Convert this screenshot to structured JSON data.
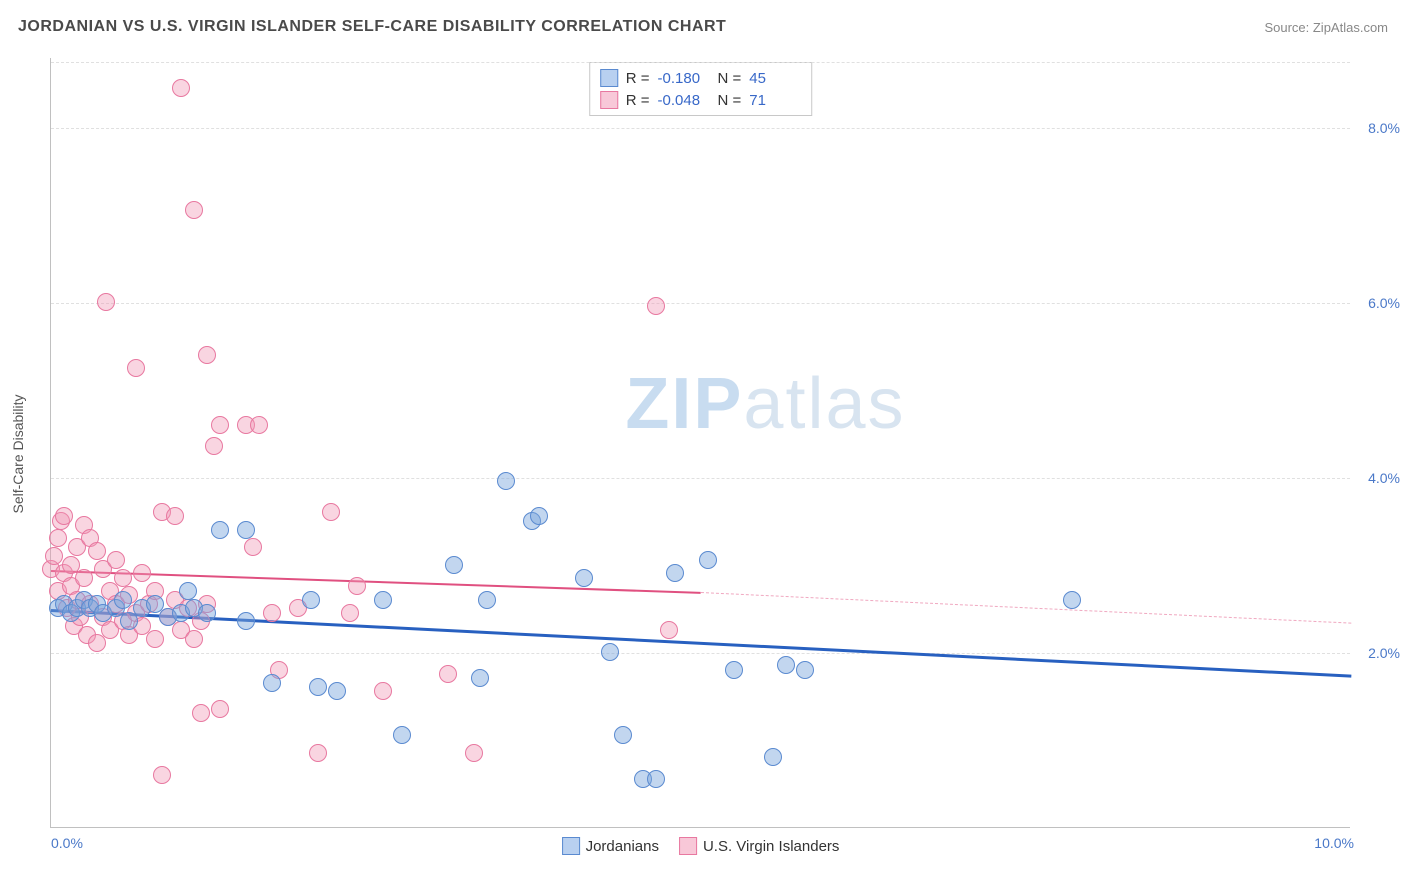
{
  "header": {
    "title": "JORDANIAN VS U.S. VIRGIN ISLANDER SELF-CARE DISABILITY CORRELATION CHART",
    "source": "Source: ZipAtlas.com"
  },
  "watermark": {
    "text1": "ZIP",
    "text2": "atlas"
  },
  "axes": {
    "y_label": "Self-Care Disability",
    "x_min": 0,
    "x_max": 10,
    "y_min": 0,
    "y_max": 8.8,
    "y_ticks": [
      2,
      4,
      6,
      8
    ],
    "y_tick_labels": [
      "2.0%",
      "4.0%",
      "6.0%",
      "8.0%"
    ],
    "x_tick_left": "0.0%",
    "x_tick_right": "10.0%",
    "tick_color": "#4a78c8",
    "grid_color": "#e0e0e0"
  },
  "stats_legend": {
    "rows": [
      {
        "swatch_fill": "#b8d0f0",
        "swatch_border": "#5a8ad0",
        "r_label": "R =",
        "r_val": "-0.180",
        "n_label": "N =",
        "n_val": "45"
      },
      {
        "swatch_fill": "#f8c8d8",
        "swatch_border": "#e878a0",
        "r_label": "R =",
        "r_val": "-0.048",
        "n_label": "N =",
        "n_val": "71"
      }
    ]
  },
  "bottom_legend": {
    "items": [
      {
        "swatch_fill": "#b8d0f0",
        "swatch_border": "#5a8ad0",
        "label": "Jordanians"
      },
      {
        "swatch_fill": "#f8c8d8",
        "swatch_border": "#e878a0",
        "label": "U.S. Virgin Islanders"
      }
    ]
  },
  "series": {
    "blue": {
      "fill": "rgba(120,165,220,0.45)",
      "stroke": "#5a8ad0",
      "radius": 9,
      "trend": {
        "x1": 0,
        "y1": 2.5,
        "x2": 10,
        "y2": 1.75,
        "color": "#2860c0",
        "width": 2.5,
        "dash_from_x": 10
      },
      "points": [
        [
          0.05,
          2.5
        ],
        [
          0.1,
          2.55
        ],
        [
          0.15,
          2.45
        ],
        [
          0.2,
          2.5
        ],
        [
          0.25,
          2.6
        ],
        [
          0.3,
          2.5
        ],
        [
          0.35,
          2.55
        ],
        [
          0.4,
          2.45
        ],
        [
          0.5,
          2.5
        ],
        [
          0.55,
          2.6
        ],
        [
          0.6,
          2.35
        ],
        [
          0.7,
          2.5
        ],
        [
          0.8,
          2.55
        ],
        [
          0.9,
          2.4
        ],
        [
          1.0,
          2.45
        ],
        [
          1.05,
          2.7
        ],
        [
          1.1,
          2.5
        ],
        [
          1.2,
          2.45
        ],
        [
          1.3,
          3.4
        ],
        [
          1.5,
          2.35
        ],
        [
          1.5,
          3.4
        ],
        [
          1.7,
          1.65
        ],
        [
          2.0,
          2.6
        ],
        [
          2.05,
          1.6
        ],
        [
          2.2,
          1.55
        ],
        [
          2.55,
          2.6
        ],
        [
          2.7,
          1.05
        ],
        [
          3.1,
          3.0
        ],
        [
          3.3,
          1.7
        ],
        [
          3.5,
          3.95
        ],
        [
          3.7,
          3.5
        ],
        [
          3.75,
          3.55
        ],
        [
          4.1,
          2.85
        ],
        [
          4.3,
          2.0
        ],
        [
          4.4,
          1.05
        ],
        [
          4.55,
          0.55
        ],
        [
          4.8,
          2.9
        ],
        [
          5.05,
          3.05
        ],
        [
          5.25,
          1.8
        ],
        [
          5.55,
          0.8
        ],
        [
          5.65,
          1.85
        ],
        [
          5.8,
          1.8
        ],
        [
          7.85,
          2.6
        ],
        [
          4.65,
          0.55
        ],
        [
          3.35,
          2.6
        ]
      ]
    },
    "pink": {
      "fill": "rgba(240,150,180,0.40)",
      "stroke": "#e878a0",
      "radius": 9,
      "trend": {
        "x1": 0,
        "y1": 2.95,
        "x2": 5,
        "y2": 2.7,
        "color": "#e05080",
        "width": 2,
        "dash_from_x": 5,
        "dash_color": "#f0a8c0",
        "x2_dash": 10,
        "y2_dash": 2.35
      },
      "points": [
        [
          0.0,
          2.95
        ],
        [
          0.02,
          3.1
        ],
        [
          0.05,
          3.3
        ],
        [
          0.05,
          2.7
        ],
        [
          0.08,
          3.5
        ],
        [
          0.1,
          3.55
        ],
        [
          0.1,
          2.9
        ],
        [
          0.12,
          2.5
        ],
        [
          0.15,
          3.0
        ],
        [
          0.15,
          2.75
        ],
        [
          0.18,
          2.3
        ],
        [
          0.2,
          3.2
        ],
        [
          0.2,
          2.6
        ],
        [
          0.22,
          2.4
        ],
        [
          0.25,
          3.45
        ],
        [
          0.25,
          2.85
        ],
        [
          0.28,
          2.2
        ],
        [
          0.3,
          3.3
        ],
        [
          0.3,
          2.55
        ],
        [
          0.35,
          2.1
        ],
        [
          0.35,
          3.15
        ],
        [
          0.4,
          2.95
        ],
        [
          0.4,
          2.4
        ],
        [
          0.42,
          6.0
        ],
        [
          0.45,
          2.7
        ],
        [
          0.45,
          2.25
        ],
        [
          0.5,
          3.05
        ],
        [
          0.5,
          2.55
        ],
        [
          0.55,
          2.35
        ],
        [
          0.55,
          2.85
        ],
        [
          0.6,
          2.2
        ],
        [
          0.6,
          2.65
        ],
        [
          0.65,
          2.45
        ],
        [
          0.65,
          5.25
        ],
        [
          0.7,
          2.9
        ],
        [
          0.7,
          2.3
        ],
        [
          0.75,
          2.55
        ],
        [
          0.8,
          2.15
        ],
        [
          0.8,
          2.7
        ],
        [
          0.85,
          0.6
        ],
        [
          0.85,
          3.6
        ],
        [
          0.9,
          2.4
        ],
        [
          0.95,
          2.6
        ],
        [
          0.95,
          3.55
        ],
        [
          1.0,
          2.25
        ],
        [
          1.0,
          8.45
        ],
        [
          1.05,
          2.5
        ],
        [
          1.1,
          2.15
        ],
        [
          1.1,
          7.05
        ],
        [
          1.15,
          2.35
        ],
        [
          1.15,
          1.3
        ],
        [
          1.2,
          5.4
        ],
        [
          1.2,
          2.55
        ],
        [
          1.25,
          4.35
        ],
        [
          1.3,
          4.6
        ],
        [
          1.3,
          1.35
        ],
        [
          1.5,
          4.6
        ],
        [
          1.55,
          3.2
        ],
        [
          1.6,
          4.6
        ],
        [
          1.7,
          2.45
        ],
        [
          1.75,
          1.8
        ],
        [
          1.9,
          2.5
        ],
        [
          2.05,
          0.85
        ],
        [
          2.15,
          3.6
        ],
        [
          2.3,
          2.45
        ],
        [
          2.35,
          2.75
        ],
        [
          2.55,
          1.55
        ],
        [
          3.05,
          1.75
        ],
        [
          3.25,
          0.85
        ],
        [
          4.65,
          5.95
        ],
        [
          4.75,
          2.25
        ]
      ]
    }
  }
}
